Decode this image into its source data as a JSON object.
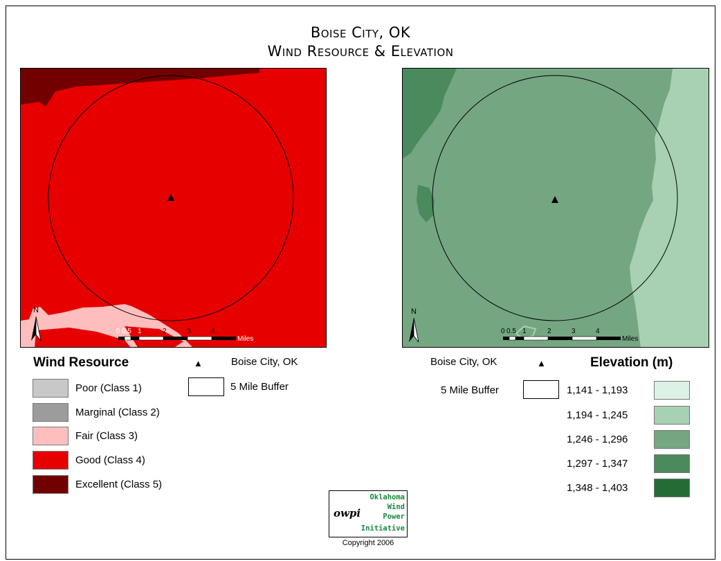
{
  "title": {
    "line1": "Boise City, OK",
    "line2": "Wind Resource & Elevation"
  },
  "wind_map": {
    "north_label": "N",
    "scale": {
      "ticks": [
        "0",
        "0.5",
        "1",
        "2",
        "3",
        "4"
      ],
      "unit": "Miles"
    }
  },
  "elevation_map": {
    "north_label": "N",
    "scale": {
      "ticks": [
        "0",
        "0.5",
        "1",
        "2",
        "3",
        "4"
      ],
      "unit": "Miles"
    }
  },
  "wind_legend": {
    "title": "Wind Resource",
    "city": "Boise City, OK",
    "buffer": "5 Mile Buffer",
    "classes": [
      {
        "label": "Poor (Class 1)",
        "color": "#c8c8c8"
      },
      {
        "label": "Marginal (Class 2)",
        "color": "#9c9c9c"
      },
      {
        "label": "Fair (Class 3)",
        "color": "#ffbebe"
      },
      {
        "label": "Good (Class 4)",
        "color": "#e60000"
      },
      {
        "label": "Excellent (Class 5)",
        "color": "#730000"
      }
    ]
  },
  "elevation_legend": {
    "title": "Elevation (m)",
    "city": "Boise City, OK",
    "buffer": "5 Mile Buffer",
    "classes": [
      {
        "label": "1,141 - 1,193",
        "color": "#ddf2e6"
      },
      {
        "label": "1,194 - 1,245",
        "color": "#a7d1b2"
      },
      {
        "label": "1,246 - 1,296",
        "color": "#74a682"
      },
      {
        "label": "1,297 - 1,347",
        "color": "#4a8a5c"
      },
      {
        "label": "1,348 - 1,403",
        "color": "#246b37"
      }
    ]
  },
  "logo": {
    "line1": "Oklahoma",
    "line2": "Wind",
    "line3": "Power",
    "line4": "Initiative",
    "mark": "owpi"
  },
  "copyright": "Copyright 2006"
}
